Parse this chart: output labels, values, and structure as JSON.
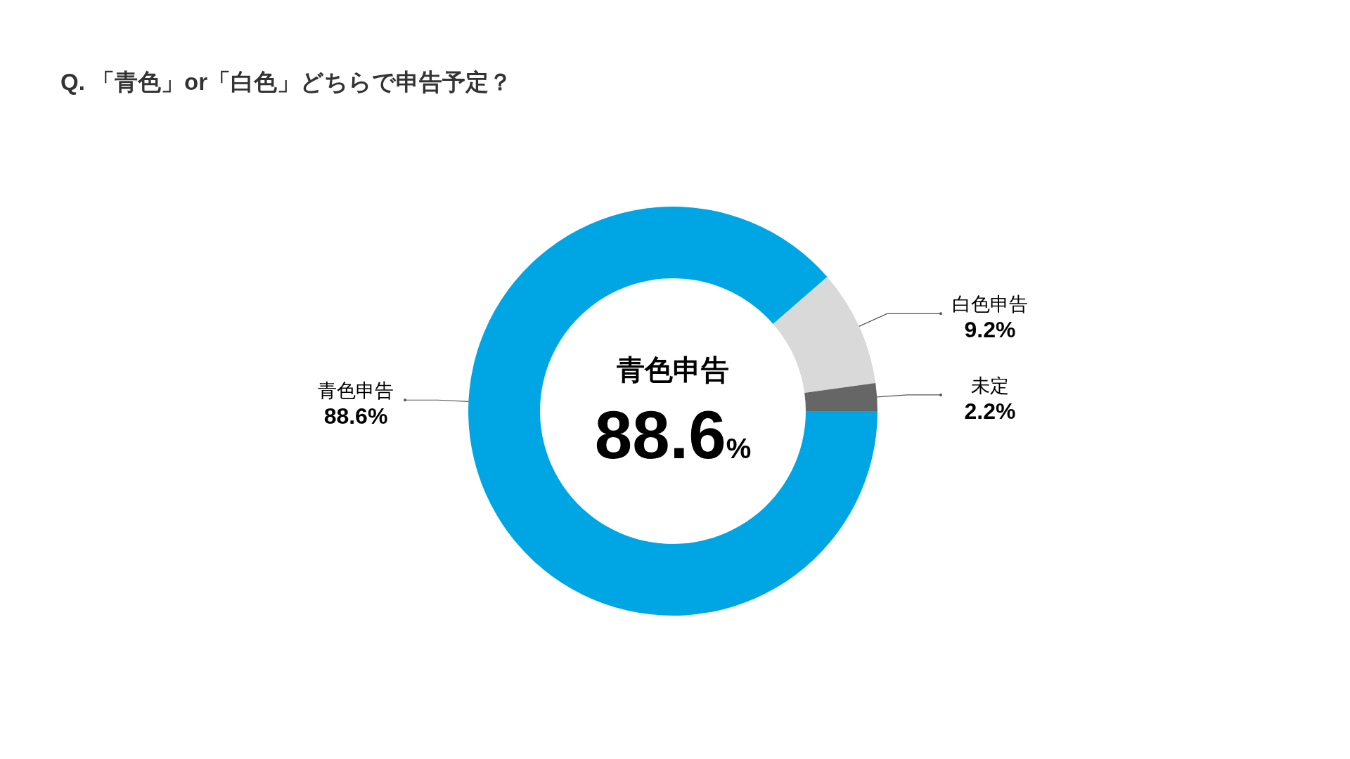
{
  "chart_data": {
    "type": "donut",
    "title": "Q. 「青色」or「白色」どちらで申告予定？",
    "categories": [
      "青色申告",
      "白色申告",
      "未定"
    ],
    "values": [
      88.6,
      9.2,
      2.2
    ],
    "value_labels": [
      "88.6%",
      "9.2%",
      "2.2%"
    ],
    "colors": [
      "#00a6e3",
      "#d9d9d9",
      "#666666"
    ],
    "annotations": [
      "青色申告",
      "88.6%"
    ]
  }
}
